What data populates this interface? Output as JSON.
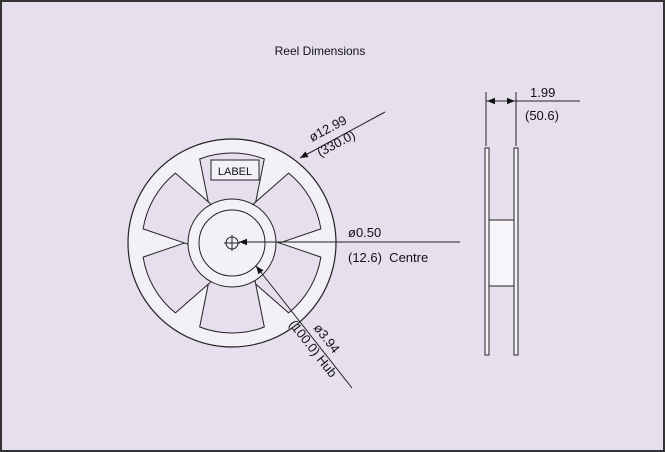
{
  "title": "Reel Dimensions",
  "reel_label": "LABEL",
  "outer_diameter": {
    "imperial": "ø12.99",
    "metric": "(330.0)"
  },
  "centre": {
    "imperial": "ø0.50",
    "metric": "(12.6)  Centre"
  },
  "hub": {
    "imperial": "ø3.94",
    "metric": "(100.0) Hub"
  },
  "width": {
    "imperial": "1.99",
    "metric": "(50.6)"
  }
}
